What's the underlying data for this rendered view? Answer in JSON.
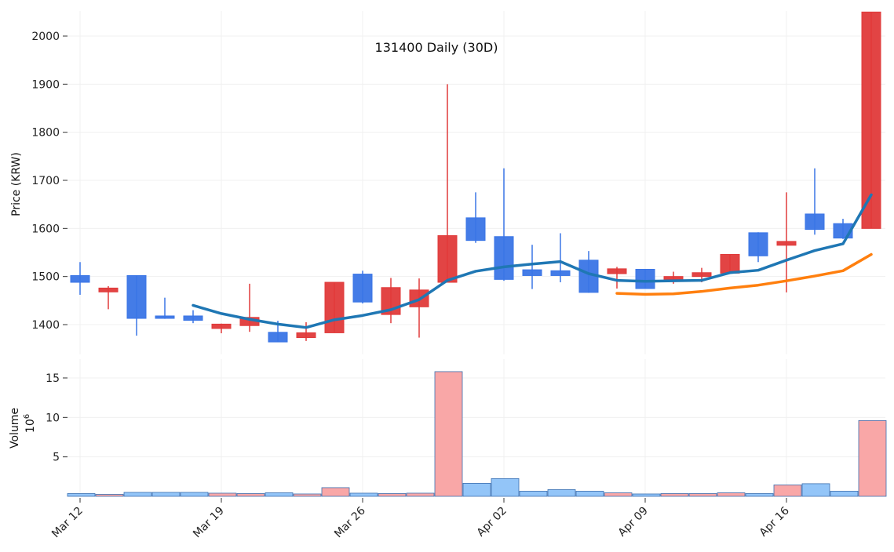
{
  "chart_data": {
    "type": "candlestick",
    "title": "131400 Daily (30D)",
    "price_axis": {
      "label": "Price (KRW)",
      "ylim": [
        1345,
        2055
      ],
      "ticks": [
        1400,
        1500,
        1600,
        1700,
        1800,
        1900,
        2000
      ]
    },
    "volume_axis": {
      "label": "Volume",
      "exponent_label": "10",
      "exponent_power": "6",
      "ylim": [
        0,
        16.2
      ],
      "ticks": [
        5,
        10,
        15
      ]
    },
    "x_ticks": [
      {
        "label": "Mar 12",
        "index": 0
      },
      {
        "label": "Mar 19",
        "index": 5
      },
      {
        "label": "Mar 26",
        "index": 10
      },
      {
        "label": "Apr 02",
        "index": 15
      },
      {
        "label": "Apr 09",
        "index": 20
      },
      {
        "label": "Apr 16",
        "index": 25
      }
    ],
    "colors": {
      "up": "#e03a3a",
      "down": "#3a75e6",
      "vol_up": "#f9a7a7",
      "vol_down": "#93c5f8",
      "ma_short": "#1f77b4",
      "ma_long": "#ff7f0e",
      "grid": "#f0f0f0"
    },
    "candles": [
      {
        "o": 1502,
        "h": 1530,
        "l": 1462,
        "c": 1488,
        "v": 0.35
      },
      {
        "o": 1468,
        "h": 1480,
        "l": 1432,
        "c": 1476,
        "v": 0.25
      },
      {
        "o": 1502,
        "h": 1502,
        "l": 1377,
        "c": 1413,
        "v": 0.5
      },
      {
        "o": 1418,
        "h": 1456,
        "l": 1412,
        "c": 1413,
        "v": 0.5
      },
      {
        "o": 1418,
        "h": 1430,
        "l": 1403,
        "c": 1409,
        "v": 0.5
      },
      {
        "o": 1392,
        "h": 1402,
        "l": 1382,
        "c": 1401,
        "v": 0.4
      },
      {
        "o": 1398,
        "h": 1485,
        "l": 1385,
        "c": 1415,
        "v": 0.35
      },
      {
        "o": 1384,
        "h": 1408,
        "l": 1364,
        "c": 1364,
        "v": 0.45
      },
      {
        "o": 1373,
        "h": 1405,
        "l": 1366,
        "c": 1383,
        "v": 0.3
      },
      {
        "o": 1383,
        "h": 1488,
        "l": 1383,
        "c": 1488,
        "v": 1.1
      },
      {
        "o": 1505,
        "h": 1512,
        "l": 1444,
        "c": 1447,
        "v": 0.4
      },
      {
        "o": 1421,
        "h": 1497,
        "l": 1403,
        "c": 1477,
        "v": 0.35
      },
      {
        "o": 1437,
        "h": 1496,
        "l": 1373,
        "c": 1472,
        "v": 0.4
      },
      {
        "o": 1488,
        "h": 1900,
        "l": 1488,
        "c": 1585,
        "v": 15.8
      },
      {
        "o": 1622,
        "h": 1675,
        "l": 1570,
        "c": 1575,
        "v": 1.65
      },
      {
        "o": 1583,
        "h": 1725,
        "l": 1491,
        "c": 1494,
        "v": 2.25
      },
      {
        "o": 1514,
        "h": 1566,
        "l": 1474,
        "c": 1502,
        "v": 0.65
      },
      {
        "o": 1512,
        "h": 1590,
        "l": 1488,
        "c": 1502,
        "v": 0.85
      },
      {
        "o": 1534,
        "h": 1553,
        "l": 1466,
        "c": 1467,
        "v": 0.65
      },
      {
        "o": 1506,
        "h": 1520,
        "l": 1475,
        "c": 1516,
        "v": 0.45
      },
      {
        "o": 1515,
        "h": 1515,
        "l": 1475,
        "c": 1475,
        "v": 0.3
      },
      {
        "o": 1494,
        "h": 1510,
        "l": 1485,
        "c": 1500,
        "v": 0.35
      },
      {
        "o": 1500,
        "h": 1518,
        "l": 1488,
        "c": 1508,
        "v": 0.35
      },
      {
        "o": 1507,
        "h": 1546,
        "l": 1506,
        "c": 1546,
        "v": 0.45
      },
      {
        "o": 1591,
        "h": 1592,
        "l": 1530,
        "c": 1543,
        "v": 0.35
      },
      {
        "o": 1565,
        "h": 1675,
        "l": 1467,
        "c": 1573,
        "v": 1.45
      },
      {
        "o": 1630,
        "h": 1725,
        "l": 1587,
        "c": 1598,
        "v": 1.6
      },
      {
        "o": 1610,
        "h": 1620,
        "l": 1578,
        "c": 1580,
        "v": 0.65
      },
      {
        "o": 1600,
        "h": 2050,
        "l": 1600,
        "c": 2050,
        "v": 9.6
      }
    ],
    "ma_short": [
      null,
      null,
      null,
      null,
      1440,
      1423,
      1411,
      1401,
      1394,
      1410,
      1419,
      1431,
      1452,
      1492,
      1511,
      1520,
      1526,
      1531,
      1506,
      1492,
      1490,
      1491,
      1492,
      1508,
      1513,
      1534,
      1554,
      1568,
      1670
    ],
    "ma_long": [
      null,
      null,
      null,
      null,
      null,
      null,
      null,
      null,
      null,
      null,
      null,
      null,
      null,
      null,
      null,
      null,
      null,
      null,
      null,
      1465,
      1463,
      1464,
      1469,
      1476,
      1482,
      1491,
      1501,
      1512,
      1546
    ]
  }
}
